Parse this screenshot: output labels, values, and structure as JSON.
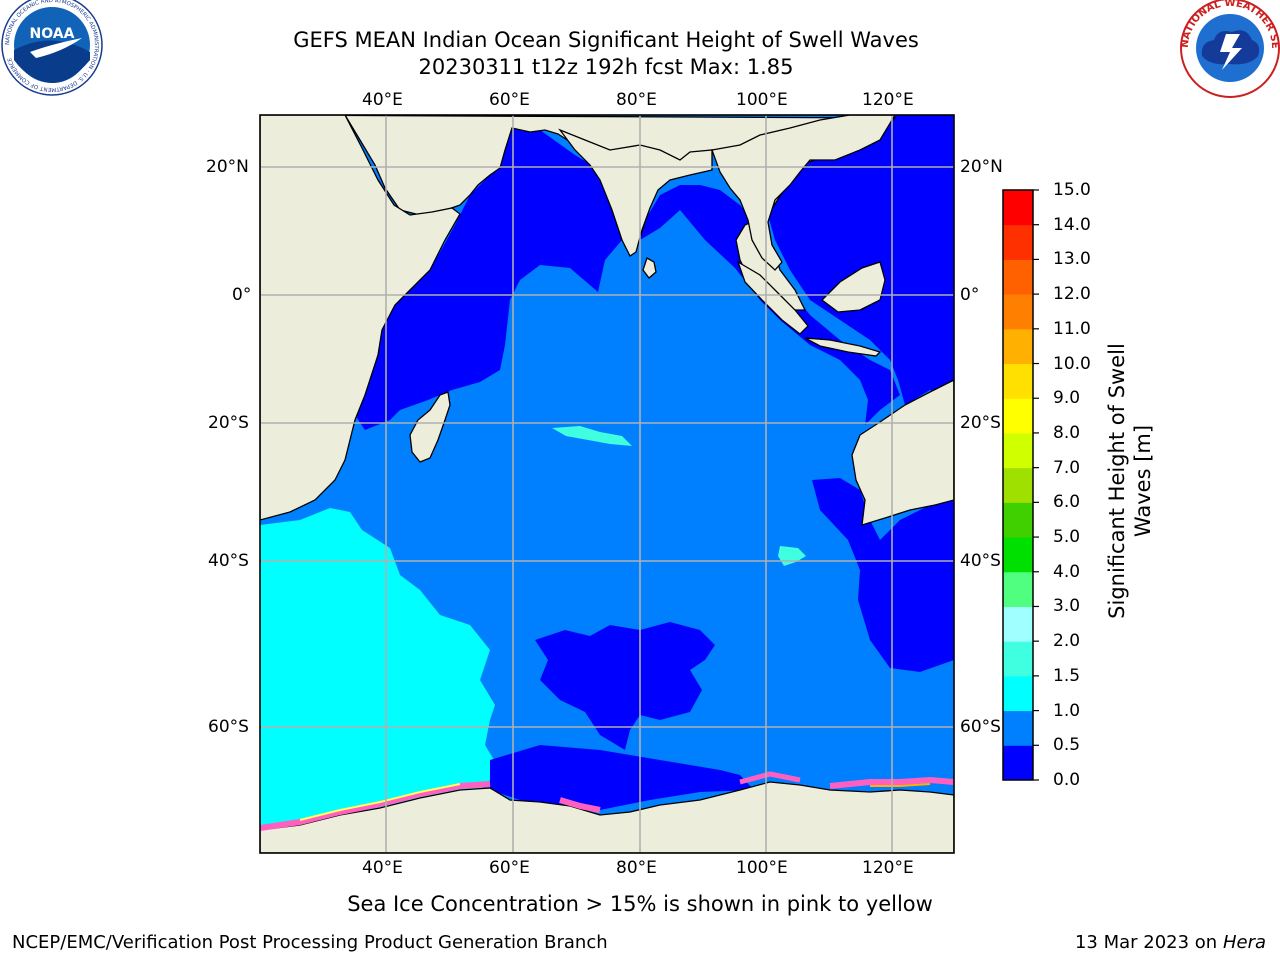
{
  "title": {
    "line1": "GEFS MEAN Indian Ocean Significant Height of Swell Waves",
    "line2": "20230311 t12z 192h fcst   Max: 1.85"
  },
  "logos": {
    "noaa_text": "NOAA",
    "noaa_ring": "NATIONAL OCEANIC AND ATMOSPHERIC ADMINISTRATION · U.S. DEPARTMENT OF COMMERCE",
    "nws_ring": "NATIONAL WEATHER SERVICE"
  },
  "axes": {
    "lon_ticks": [
      "40°E",
      "60°E",
      "80°E",
      "100°E",
      "120°E"
    ],
    "lat_ticks": [
      "20°N",
      "0°",
      "20°S",
      "40°S",
      "60°S"
    ]
  },
  "colorbar": {
    "label_line1": "Significant Height of Swell",
    "label_line2": "Waves [m]",
    "ticks": [
      "0.0",
      "0.5",
      "1.0",
      "1.5",
      "2.0",
      "3.0",
      "4.0",
      "5.0",
      "6.0",
      "7.0",
      "8.0",
      "9.0",
      "10.0",
      "11.0",
      "12.0",
      "13.0",
      "14.0",
      "15.0"
    ],
    "colors": [
      "#0000ff",
      "#0080ff",
      "#00ffff",
      "#40ffe0",
      "#a0ffff",
      "#50ff80",
      "#00e000",
      "#40d000",
      "#a0e000",
      "#d0ff00",
      "#ffff00",
      "#ffe000",
      "#ffb000",
      "#ff8000",
      "#ff6000",
      "#ff3000",
      "#ff0000"
    ]
  },
  "colors": {
    "land": "#ededdc",
    "ocean_dark": "#0000ff",
    "ocean_mid": "#0080ff",
    "ocean_light": "#00ffff",
    "sea_ice": "#ff60c0",
    "grid": "#b0b0b0"
  },
  "note": "Sea Ice Concentration > 15% is shown in pink to yellow",
  "footer_left": "NCEP/EMC/Verification Post Processing Product Generation Branch",
  "footer_right_prefix": "13 Mar 2023 on",
  "footer_right_host": "Hera"
}
